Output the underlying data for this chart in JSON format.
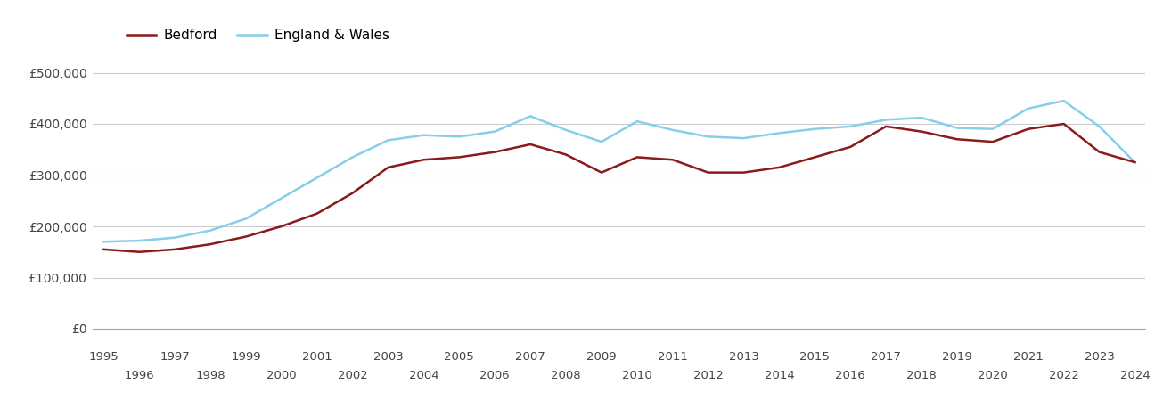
{
  "years": [
    1995,
    1996,
    1997,
    1998,
    1999,
    2000,
    2001,
    2002,
    2003,
    2004,
    2005,
    2006,
    2007,
    2008,
    2009,
    2010,
    2011,
    2012,
    2013,
    2014,
    2015,
    2016,
    2017,
    2018,
    2019,
    2020,
    2021,
    2022,
    2023,
    2024
  ],
  "bedford": [
    155000,
    150000,
    155000,
    165000,
    180000,
    200000,
    225000,
    265000,
    315000,
    330000,
    335000,
    345000,
    360000,
    340000,
    305000,
    335000,
    330000,
    305000,
    305000,
    315000,
    335000,
    355000,
    395000,
    385000,
    370000,
    365000,
    390000,
    400000,
    345000,
    325000
  ],
  "england_wales": [
    170000,
    172000,
    178000,
    192000,
    215000,
    255000,
    295000,
    335000,
    368000,
    378000,
    375000,
    385000,
    415000,
    388000,
    365000,
    405000,
    388000,
    375000,
    372000,
    382000,
    390000,
    395000,
    408000,
    412000,
    392000,
    390000,
    430000,
    445000,
    395000,
    325000
  ],
  "bedford_color": "#8B1A1A",
  "ew_color": "#87CEEB",
  "background_color": "#ffffff",
  "grid_color": "#cccccc",
  "ylim": [
    0,
    540000
  ],
  "yticks": [
    0,
    100000,
    200000,
    300000,
    400000,
    500000
  ],
  "ytick_labels": [
    "£0",
    "£100,000",
    "£200,000",
    "£300,000",
    "£400,000",
    "£500,000"
  ],
  "legend_bedford": "Bedford",
  "legend_ew": "England & Wales",
  "line_width": 1.8
}
